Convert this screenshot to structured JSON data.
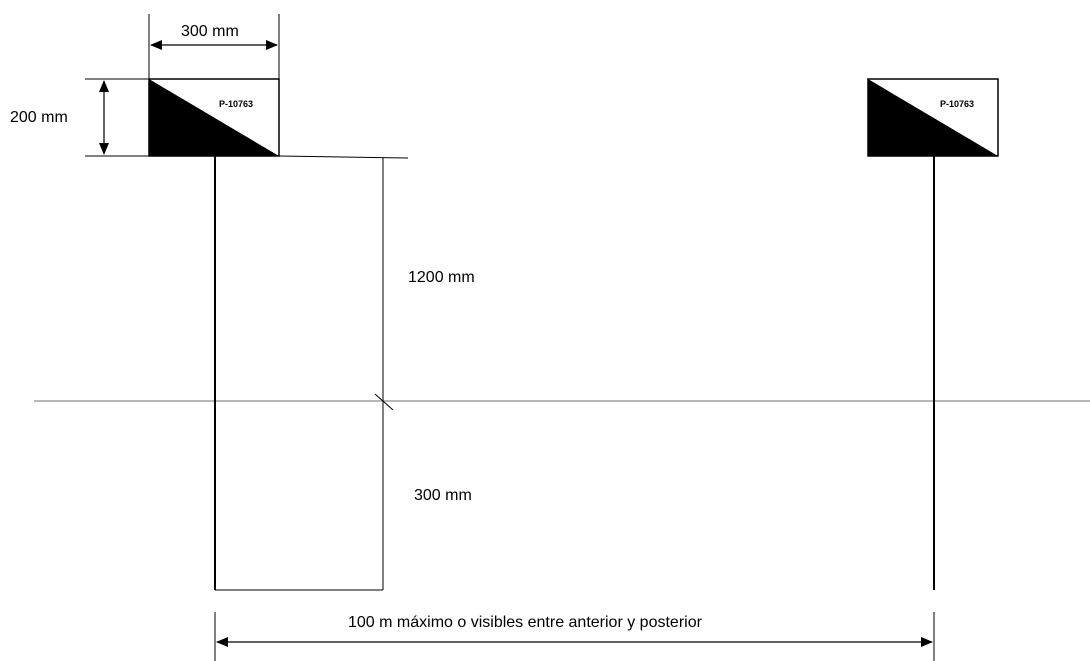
{
  "dimensions": {
    "sign_width": "300 mm",
    "sign_height": "200 mm",
    "above_ground": "1200 mm",
    "below_ground": "300 mm",
    "spacing": "100 m máximo o visibles entre anterior y posterior"
  },
  "signs": [
    {
      "code": "P-10763"
    },
    {
      "code": "P-10763"
    }
  ],
  "colors": {
    "ink": "#000000",
    "ground_line": "#a0a0a0",
    "sign_face": "#ffffff"
  }
}
